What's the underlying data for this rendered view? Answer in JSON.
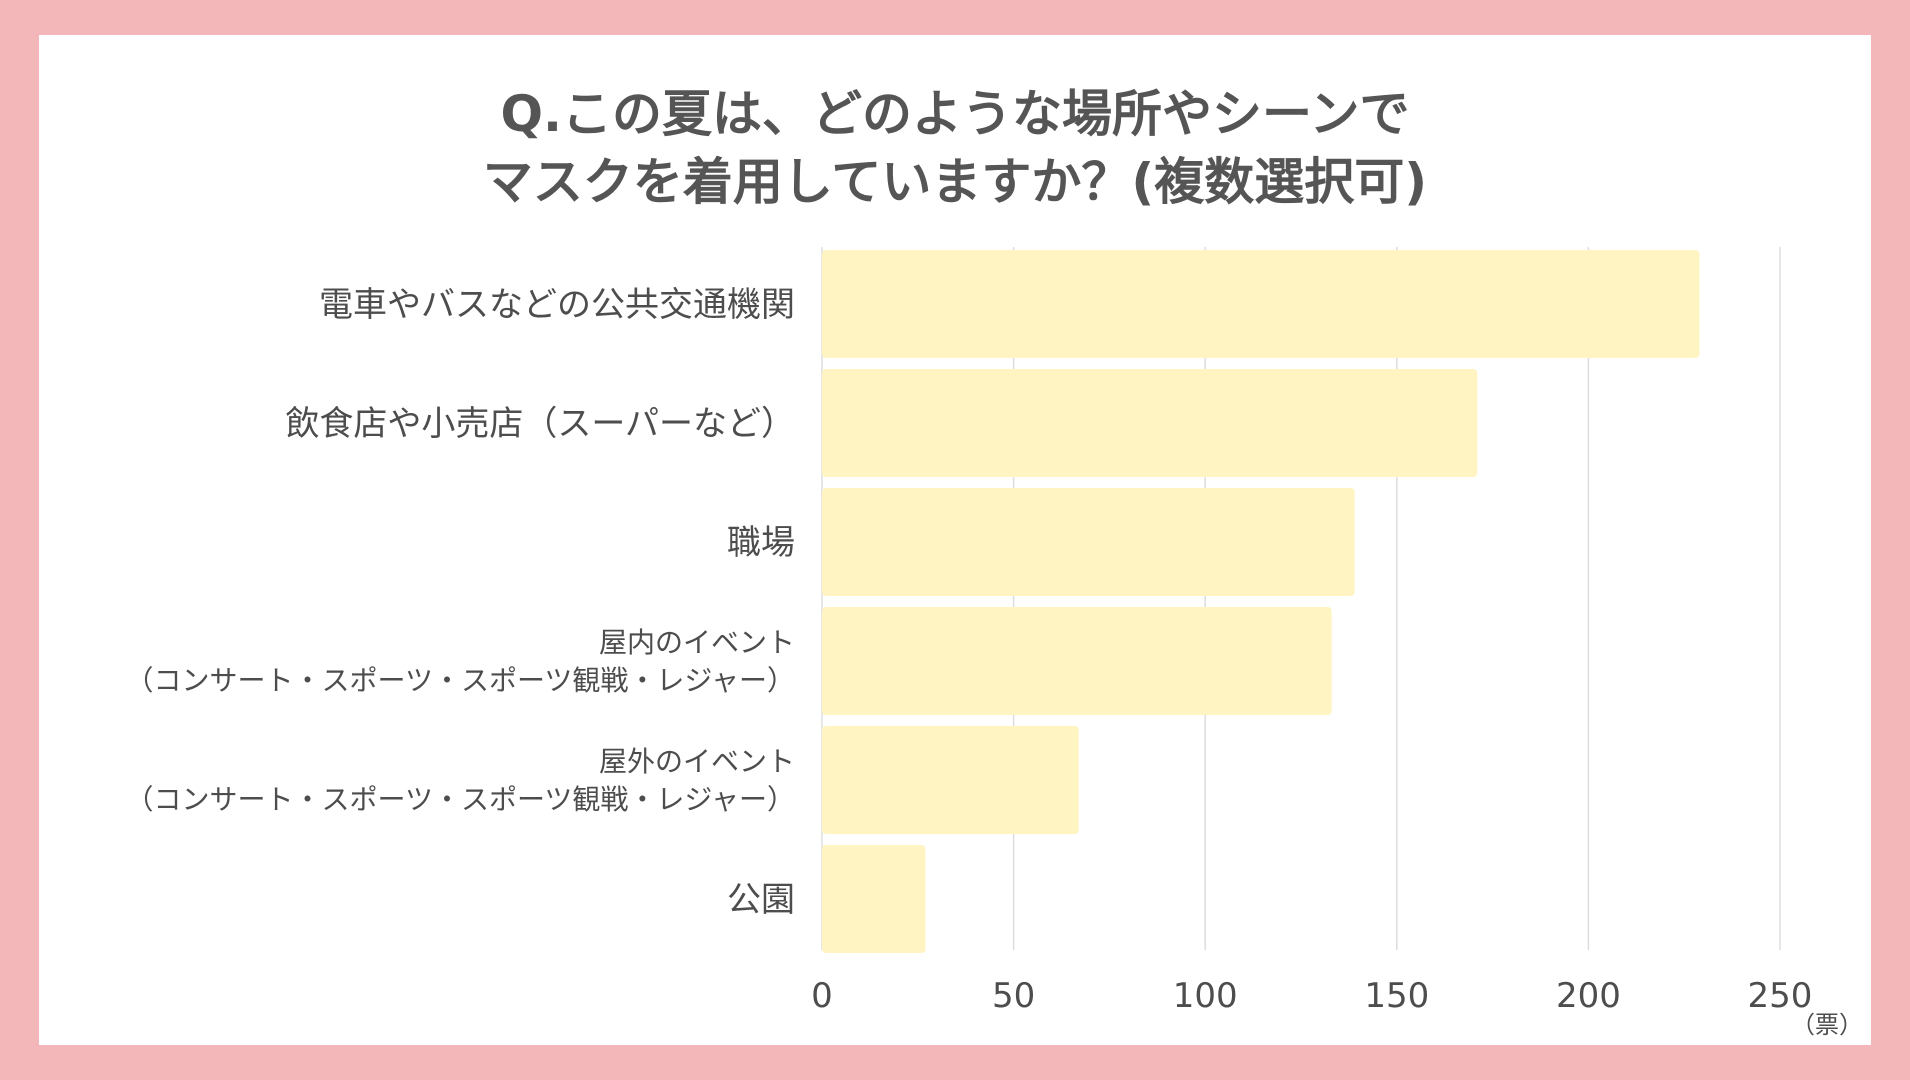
{
  "chart_data": {
    "type": "bar",
    "orientation": "horizontal",
    "title_lines": [
      "Q.この夏は、どのような場所やシーンで",
      "マスクを着用していますか？(複数選択可)"
    ],
    "categories": [
      [
        "電車やバスなどの公共交通機関"
      ],
      [
        "飲食店や小売店（スーパーなど）"
      ],
      [
        "職場"
      ],
      [
        "屋内のイベント",
        "（コンサート・スポーツ・スポーツ観戦・レジャー）"
      ],
      [
        "屋外のイベント",
        "（コンサート・スポーツ・スポーツ観戦・レジャー）"
      ],
      [
        "公園"
      ]
    ],
    "values": [
      229,
      171,
      139,
      133,
      67,
      27
    ],
    "xlim": [
      0,
      250
    ],
    "xticks": [
      0,
      50,
      100,
      150,
      200,
      250
    ],
    "unit": "（票）",
    "grid": true,
    "bar_color": "#fff4c2",
    "grid_color": "#dddddd",
    "text_color": "#4d4d4d",
    "background_color": "#ffffff",
    "frame_color": "#f4b7b9"
  }
}
